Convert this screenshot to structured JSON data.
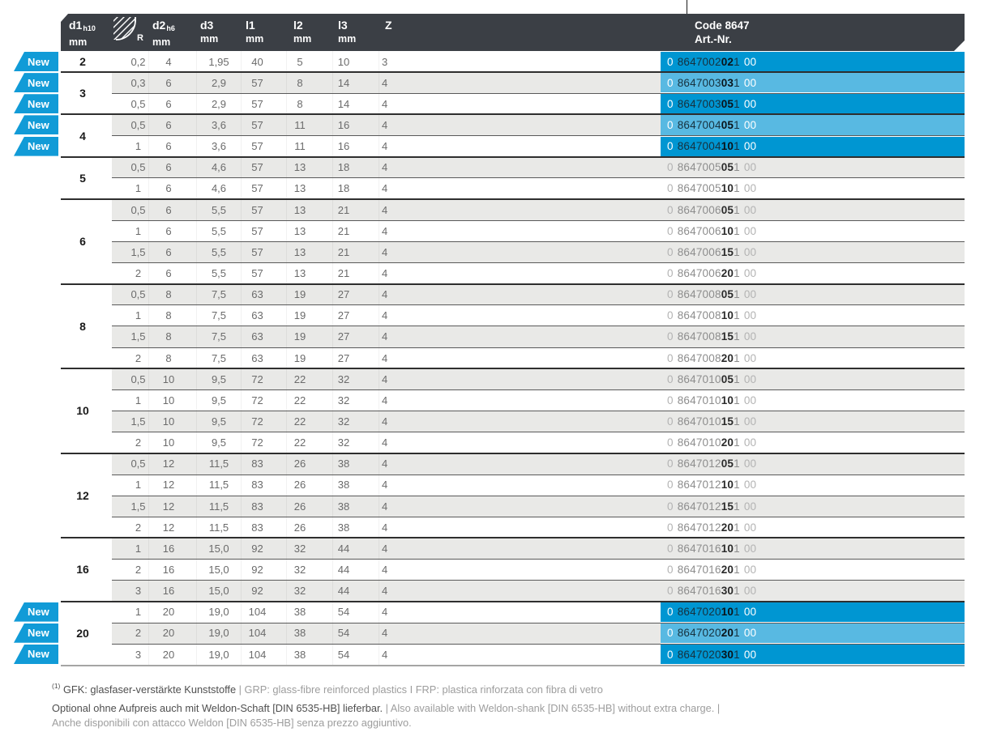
{
  "colors": {
    "header_bg": "#3b3f45",
    "stripe": "#e9e9e7",
    "badge_blue": "#119bd7",
    "highlight_dark": "#0096d2",
    "highlight_light": "#58b9e2",
    "row_line": "#595959",
    "group_line": "#2e2e2e",
    "bottom_line": "#a5a5a4",
    "cell_text": "#6b6b6b",
    "d1_text": "#1a1a1a",
    "art_pre": "#b3b3b3",
    "art_body": "#8d8d8d",
    "art_bold": "#2b2b2b",
    "art_on_blue_body": "#17313e",
    "fn_dark": "#4f4f4f",
    "fn_light": "#9d9d9d"
  },
  "table": {
    "badge_label": "New",
    "header": {
      "d1": {
        "label": "d1",
        "sub": "h10",
        "unit": "mm"
      },
      "r": {
        "label": "R"
      },
      "d2": {
        "label": "d2",
        "sub": "h6",
        "unit": "mm"
      },
      "d3": {
        "label": "d3",
        "unit": "mm"
      },
      "l1": {
        "label": "l1",
        "unit": "mm"
      },
      "l2": {
        "label": "l2",
        "unit": "mm"
      },
      "l3": {
        "label": "l3",
        "unit": "mm"
      },
      "z": {
        "label": "Z"
      },
      "art": {
        "line1": "Code 8647",
        "line2": "Art.-Nr."
      }
    },
    "art_format": {
      "pre": "0",
      "tail": "1",
      "suffix": "00"
    },
    "groups": [
      {
        "d1": "2",
        "rows": [
          {
            "r": "0,2",
            "d2": "4",
            "d3": "1,95",
            "l1": "40",
            "l2": "5",
            "l3": "10",
            "z": "3",
            "art": {
              "body": "8647002",
              "bold": "02"
            },
            "new": true
          }
        ]
      },
      {
        "d1": "3",
        "rows": [
          {
            "r": "0,3",
            "d2": "6",
            "d3": "2,9",
            "l1": "57",
            "l2": "8",
            "l3": "14",
            "z": "4",
            "art": {
              "body": "8647003",
              "bold": "03"
            },
            "new": true
          },
          {
            "r": "0,5",
            "d2": "6",
            "d3": "2,9",
            "l1": "57",
            "l2": "8",
            "l3": "14",
            "z": "4",
            "art": {
              "body": "8647003",
              "bold": "05"
            },
            "new": true
          }
        ]
      },
      {
        "d1": "4",
        "rows": [
          {
            "r": "0,5",
            "d2": "6",
            "d3": "3,6",
            "l1": "57",
            "l2": "11",
            "l3": "16",
            "z": "4",
            "art": {
              "body": "8647004",
              "bold": "05"
            },
            "new": true
          },
          {
            "r": "1",
            "d2": "6",
            "d3": "3,6",
            "l1": "57",
            "l2": "11",
            "l3": "16",
            "z": "4",
            "art": {
              "body": "8647004",
              "bold": "10"
            },
            "new": true
          }
        ]
      },
      {
        "d1": "5",
        "rows": [
          {
            "r": "0,5",
            "d2": "6",
            "d3": "4,6",
            "l1": "57",
            "l2": "13",
            "l3": "18",
            "z": "4",
            "art": {
              "body": "8647005",
              "bold": "05"
            },
            "new": false
          },
          {
            "r": "1",
            "d2": "6",
            "d3": "4,6",
            "l1": "57",
            "l2": "13",
            "l3": "18",
            "z": "4",
            "art": {
              "body": "8647005",
              "bold": "10"
            },
            "new": false
          }
        ]
      },
      {
        "d1": "6",
        "rows": [
          {
            "r": "0,5",
            "d2": "6",
            "d3": "5,5",
            "l1": "57",
            "l2": "13",
            "l3": "21",
            "z": "4",
            "art": {
              "body": "8647006",
              "bold": "05"
            },
            "new": false
          },
          {
            "r": "1",
            "d2": "6",
            "d3": "5,5",
            "l1": "57",
            "l2": "13",
            "l3": "21",
            "z": "4",
            "art": {
              "body": "8647006",
              "bold": "10"
            },
            "new": false
          },
          {
            "r": "1,5",
            "d2": "6",
            "d3": "5,5",
            "l1": "57",
            "l2": "13",
            "l3": "21",
            "z": "4",
            "art": {
              "body": "8647006",
              "bold": "15"
            },
            "new": false
          },
          {
            "r": "2",
            "d2": "6",
            "d3": "5,5",
            "l1": "57",
            "l2": "13",
            "l3": "21",
            "z": "4",
            "art": {
              "body": "8647006",
              "bold": "20"
            },
            "new": false
          }
        ]
      },
      {
        "d1": "8",
        "rows": [
          {
            "r": "0,5",
            "d2": "8",
            "d3": "7,5",
            "l1": "63",
            "l2": "19",
            "l3": "27",
            "z": "4",
            "art": {
              "body": "8647008",
              "bold": "05"
            },
            "new": false
          },
          {
            "r": "1",
            "d2": "8",
            "d3": "7,5",
            "l1": "63",
            "l2": "19",
            "l3": "27",
            "z": "4",
            "art": {
              "body": "8647008",
              "bold": "10"
            },
            "new": false
          },
          {
            "r": "1,5",
            "d2": "8",
            "d3": "7,5",
            "l1": "63",
            "l2": "19",
            "l3": "27",
            "z": "4",
            "art": {
              "body": "8647008",
              "bold": "15"
            },
            "new": false
          },
          {
            "r": "2",
            "d2": "8",
            "d3": "7,5",
            "l1": "63",
            "l2": "19",
            "l3": "27",
            "z": "4",
            "art": {
              "body": "8647008",
              "bold": "20"
            },
            "new": false
          }
        ]
      },
      {
        "d1": "10",
        "rows": [
          {
            "r": "0,5",
            "d2": "10",
            "d3": "9,5",
            "l1": "72",
            "l2": "22",
            "l3": "32",
            "z": "4",
            "art": {
              "body": "8647010",
              "bold": "05"
            },
            "new": false
          },
          {
            "r": "1",
            "d2": "10",
            "d3": "9,5",
            "l1": "72",
            "l2": "22",
            "l3": "32",
            "z": "4",
            "art": {
              "body": "8647010",
              "bold": "10"
            },
            "new": false
          },
          {
            "r": "1,5",
            "d2": "10",
            "d3": "9,5",
            "l1": "72",
            "l2": "22",
            "l3": "32",
            "z": "4",
            "art": {
              "body": "8647010",
              "bold": "15"
            },
            "new": false
          },
          {
            "r": "2",
            "d2": "10",
            "d3": "9,5",
            "l1": "72",
            "l2": "22",
            "l3": "32",
            "z": "4",
            "art": {
              "body": "8647010",
              "bold": "20"
            },
            "new": false
          }
        ]
      },
      {
        "d1": "12",
        "rows": [
          {
            "r": "0,5",
            "d2": "12",
            "d3": "11,5",
            "l1": "83",
            "l2": "26",
            "l3": "38",
            "z": "4",
            "art": {
              "body": "8647012",
              "bold": "05"
            },
            "new": false
          },
          {
            "r": "1",
            "d2": "12",
            "d3": "11,5",
            "l1": "83",
            "l2": "26",
            "l3": "38",
            "z": "4",
            "art": {
              "body": "8647012",
              "bold": "10"
            },
            "new": false
          },
          {
            "r": "1,5",
            "d2": "12",
            "d3": "11,5",
            "l1": "83",
            "l2": "26",
            "l3": "38",
            "z": "4",
            "art": {
              "body": "8647012",
              "bold": "15"
            },
            "new": false
          },
          {
            "r": "2",
            "d2": "12",
            "d3": "11,5",
            "l1": "83",
            "l2": "26",
            "l3": "38",
            "z": "4",
            "art": {
              "body": "8647012",
              "bold": "20"
            },
            "new": false
          }
        ]
      },
      {
        "d1": "16",
        "rows": [
          {
            "r": "1",
            "d2": "16",
            "d3": "15,0",
            "l1": "92",
            "l2": "32",
            "l3": "44",
            "z": "4",
            "art": {
              "body": "8647016",
              "bold": "10"
            },
            "new": false
          },
          {
            "r": "2",
            "d2": "16",
            "d3": "15,0",
            "l1": "92",
            "l2": "32",
            "l3": "44",
            "z": "4",
            "art": {
              "body": "8647016",
              "bold": "20"
            },
            "new": false
          },
          {
            "r": "3",
            "d2": "16",
            "d3": "15,0",
            "l1": "92",
            "l2": "32",
            "l3": "44",
            "z": "4",
            "art": {
              "body": "8647016",
              "bold": "30"
            },
            "new": false
          }
        ]
      },
      {
        "d1": "20",
        "rows": [
          {
            "r": "1",
            "d2": "20",
            "d3": "19,0",
            "l1": "104",
            "l2": "38",
            "l3": "54",
            "z": "4",
            "art": {
              "body": "8647020",
              "bold": "10"
            },
            "new": true
          },
          {
            "r": "2",
            "d2": "20",
            "d3": "19,0",
            "l1": "104",
            "l2": "38",
            "l3": "54",
            "z": "4",
            "art": {
              "body": "8647020",
              "bold": "20"
            },
            "new": true
          },
          {
            "r": "3",
            "d2": "20",
            "d3": "19,0",
            "l1": "104",
            "l2": "38",
            "l3": "54",
            "z": "4",
            "art": {
              "body": "8647020",
              "bold": "30"
            },
            "new": true
          }
        ]
      }
    ]
  },
  "footnotes": {
    "sup": "(1)",
    "line1_dark": "GFK: glasfaser-verstärkte Kunststoffe ",
    "line1_light": "| GRP: glass-fibre reinforced plastics I FRP: plastica rinforzata con fibra di vetro",
    "line2_dark": "Optional ohne Aufpreis auch mit Weldon-Schaft [DIN 6535-HB] lieferbar. ",
    "line2_light": "| Also available with Weldon-shank [DIN 6535-HB] without extra charge. |",
    "line3_light": "Anche disponibili con attacco Weldon [DIN 6535-HB] senza prezzo aggiuntivo."
  }
}
